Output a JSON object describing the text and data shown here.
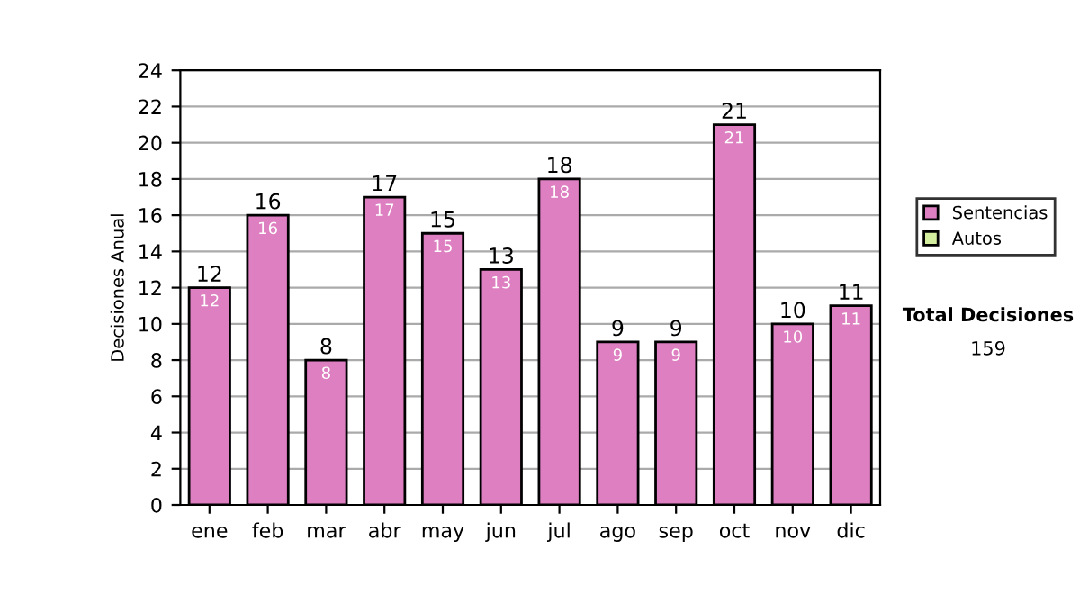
{
  "chart_data": {
    "type": "bar",
    "ylabel": "Decisiones Anual",
    "stacked": true,
    "categories": [
      "ene",
      "feb",
      "mar",
      "abr",
      "may",
      "jun",
      "jul",
      "ago",
      "sep",
      "oct",
      "nov",
      "dic"
    ],
    "series": [
      {
        "name": "Sentencias",
        "color": "#dd7fc0",
        "values": [
          12,
          16,
          8,
          17,
          15,
          13,
          18,
          9,
          9,
          21,
          10,
          11
        ],
        "value_labels": [
          "12",
          "16",
          "8",
          "17",
          "15",
          "13",
          "18",
          "9",
          "9",
          "21",
          "10",
          "11"
        ]
      },
      {
        "name": "Autos",
        "color": "#d4eea0",
        "values": [
          null,
          null,
          null,
          null,
          null,
          null,
          null,
          null,
          null,
          null,
          null,
          null
        ]
      }
    ],
    "totals": [
      "12",
      "16",
      "8",
      "17",
      "15",
      "13",
      "18",
      "9",
      "9",
      "21",
      "10",
      "11"
    ],
    "ylim": [
      0,
      24
    ],
    "yticks": [
      0,
      2,
      4,
      6,
      8,
      10,
      12,
      14,
      16,
      18,
      20,
      22,
      24
    ],
    "grid": "y",
    "legend": "right",
    "annotations": [
      "Total Decisiones",
      "159"
    ]
  }
}
